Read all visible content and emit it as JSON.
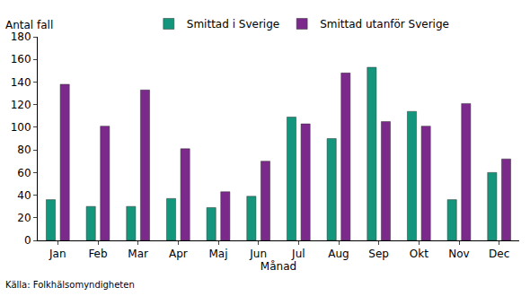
{
  "chart_data": {
    "type": "bar",
    "y_label": "Antal fall",
    "x_label": "Månad",
    "annotations": [
      "Källa: Folkhälsomyndigheten"
    ],
    "categories": [
      "Jan",
      "Feb",
      "Mar",
      "Apr",
      "Maj",
      "Jun",
      "Jul",
      "Aug",
      "Sep",
      "Okt",
      "Nov",
      "Dec"
    ],
    "series": [
      {
        "name": "Smittad i Sverige",
        "color": "#14967c",
        "values": [
          36,
          30,
          30,
          37,
          29,
          39,
          109,
          90,
          153,
          114,
          36,
          60
        ]
      },
      {
        "name": "Smittad utanför Sverige",
        "color": "#7b2a8c",
        "values": [
          138,
          101,
          133,
          81,
          43,
          70,
          103,
          148,
          105,
          101,
          121,
          72
        ]
      }
    ],
    "ylim": [
      0,
      180
    ],
    "yticks": [
      0,
      20,
      40,
      60,
      80,
      100,
      120,
      140,
      160,
      180
    ],
    "grid": false,
    "legend": "top"
  }
}
